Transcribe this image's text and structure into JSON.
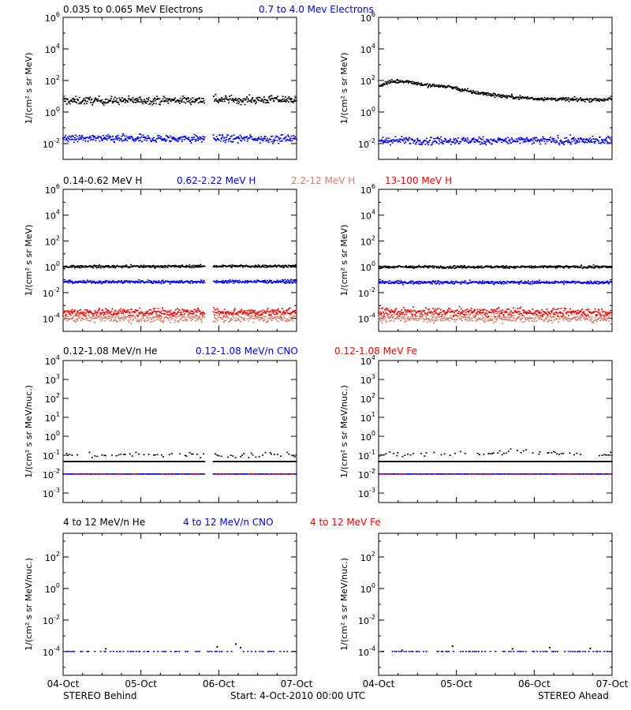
{
  "colors": {
    "black": "#000000",
    "blue": "#0000ff",
    "salmon": "#d4826a",
    "red": "#ff0000"
  },
  "footer": {
    "left": "STEREO Behind",
    "center": "Start:  4-Oct-2010 00:00 UTC",
    "right": "STEREO Ahead"
  },
  "x_tick_labels": [
    "04-Oct",
    "05-Oct",
    "06-Oct",
    "07-Oct"
  ],
  "chart_data": [
    {
      "type": "scatter",
      "row": 0,
      "spacecraft": "STEREO Behind",
      "title_entries": [
        {
          "text": "0.035 to 0.065 MeV Electrons",
          "color": "black"
        },
        {
          "text": "0.7 to 4.0 Mev Electrons",
          "color": "blue"
        }
      ],
      "ylabel": "1/(cm² s sr MeV)",
      "yscale": "log",
      "ylim_exp": [
        -3,
        6
      ],
      "yticks": [
        {
          "base": "10",
          "exp": "-2"
        },
        {
          "base": "10",
          "exp": "0"
        },
        {
          "base": "10",
          "exp": "2"
        },
        {
          "base": "10",
          "exp": "4"
        },
        {
          "base": "10",
          "exp": "6"
        }
      ],
      "xlim_days": [
        0,
        3
      ],
      "gaps": [
        [
          1.82,
          1.93
        ]
      ],
      "series": [
        {
          "color": "black",
          "values": [
            [
              0,
              5.0
            ],
            [
              3,
              6.0
            ]
          ],
          "scatter_dex": 0.12
        },
        {
          "color": "blue",
          "values": [
            [
              0,
              0.02
            ],
            [
              3,
              0.02
            ]
          ],
          "scatter_dex": 0.12
        }
      ]
    },
    {
      "type": "scatter",
      "row": 0,
      "spacecraft": "STEREO Ahead",
      "title_entries": [],
      "ylabel": "1/(cm² s sr MeV)",
      "yscale": "log",
      "ylim_exp": [
        -3,
        6
      ],
      "yticks": [
        {
          "base": "10",
          "exp": "-2"
        },
        {
          "base": "10",
          "exp": "0"
        },
        {
          "base": "10",
          "exp": "2"
        },
        {
          "base": "10",
          "exp": "4"
        },
        {
          "base": "10",
          "exp": "6"
        }
      ],
      "xlim_days": [
        0,
        3
      ],
      "gaps": [],
      "series": [
        {
          "color": "black",
          "values": [
            [
              0,
              45
            ],
            [
              0.15,
              80
            ],
            [
              0.35,
              90
            ],
            [
              0.6,
              50
            ],
            [
              0.9,
              40
            ],
            [
              1.2,
              18
            ],
            [
              1.6,
              10
            ],
            [
              2.0,
              7
            ],
            [
              2.5,
              6
            ],
            [
              3,
              6
            ]
          ],
          "scatter_dex": 0.06
        },
        {
          "color": "blue",
          "values": [
            [
              0,
              0.015
            ],
            [
              3,
              0.015
            ]
          ],
          "scatter_dex": 0.12
        }
      ]
    },
    {
      "type": "scatter",
      "row": 1,
      "spacecraft": "STEREO Behind",
      "title_entries": [
        {
          "text": "0.14-0.62 MeV H",
          "color": "black"
        },
        {
          "text": "0.62-2.22 MeV H",
          "color": "blue"
        },
        {
          "text": "2.2-12 MeV H",
          "color": "salmon"
        },
        {
          "text": "13-100 MeV H",
          "color": "red"
        }
      ],
      "ylabel": "1/(cm² s sr MeV)",
      "yscale": "log",
      "ylim_exp": [
        -5,
        6
      ],
      "yticks": [
        {
          "base": "10",
          "exp": "-4"
        },
        {
          "base": "10",
          "exp": "-2"
        },
        {
          "base": "10",
          "exp": "0"
        },
        {
          "base": "10",
          "exp": "2"
        },
        {
          "base": "10",
          "exp": "4"
        },
        {
          "base": "10",
          "exp": "6"
        }
      ],
      "xlim_days": [
        0,
        3
      ],
      "gaps": [
        [
          1.82,
          1.93
        ]
      ],
      "series": [
        {
          "color": "black",
          "values": [
            [
              0,
              1.0
            ],
            [
              3,
              1.1
            ]
          ],
          "scatter_dex": 0.05
        },
        {
          "color": "blue",
          "values": [
            [
              0,
              0.065
            ],
            [
              3,
              0.07
            ]
          ],
          "scatter_dex": 0.06
        },
        {
          "color": "salmon",
          "values": [
            [
              0,
              0.0001
            ],
            [
              3,
              0.0001
            ]
          ],
          "scatter_dex": 0.15
        },
        {
          "color": "red",
          "values": [
            [
              0,
              0.0003
            ],
            [
              3,
              0.0003
            ]
          ],
          "scatter_dex": 0.15
        }
      ]
    },
    {
      "type": "scatter",
      "row": 1,
      "spacecraft": "STEREO Ahead",
      "title_entries": [],
      "ylabel": "1/(cm² s sr MeV)",
      "yscale": "log",
      "ylim_exp": [
        -5,
        6
      ],
      "yticks": [
        {
          "base": "10",
          "exp": "-4"
        },
        {
          "base": "10",
          "exp": "-2"
        },
        {
          "base": "10",
          "exp": "0"
        },
        {
          "base": "10",
          "exp": "2"
        },
        {
          "base": "10",
          "exp": "4"
        },
        {
          "base": "10",
          "exp": "6"
        }
      ],
      "xlim_days": [
        0,
        3
      ],
      "gaps": [],
      "series": [
        {
          "color": "black",
          "values": [
            [
              0,
              0.95
            ],
            [
              3,
              0.95
            ]
          ],
          "scatter_dex": 0.05
        },
        {
          "color": "blue",
          "values": [
            [
              0,
              0.06
            ],
            [
              3,
              0.06
            ]
          ],
          "scatter_dex": 0.06
        },
        {
          "color": "salmon",
          "values": [
            [
              0,
              0.0001
            ],
            [
              3,
              0.0001
            ]
          ],
          "scatter_dex": 0.15
        },
        {
          "color": "red",
          "values": [
            [
              0,
              0.0003
            ],
            [
              3,
              0.0003
            ]
          ],
          "scatter_dex": 0.15
        }
      ]
    },
    {
      "type": "scatter",
      "row": 2,
      "spacecraft": "STEREO Behind",
      "title_entries": [
        {
          "text": "0.12-1.08 MeV/n He",
          "color": "black"
        },
        {
          "text": "0.12-1.08 MeV/n CNO",
          "color": "blue"
        },
        {
          "text": "0.12-1.08 MeV Fe",
          "color": "red"
        }
      ],
      "ylabel": "1/(cm² s sr MeV/nuc.)",
      "yscale": "log",
      "ylim_exp": [
        -3.5,
        4
      ],
      "yticks": [
        {
          "base": "10",
          "exp": "-3"
        },
        {
          "base": "10",
          "exp": "-2"
        },
        {
          "base": "10",
          "exp": "-1"
        },
        {
          "base": "10",
          "exp": "0"
        },
        {
          "base": "10",
          "exp": "1"
        },
        {
          "base": "10",
          "exp": "2"
        },
        {
          "base": "10",
          "exp": "3"
        },
        {
          "base": "10",
          "exp": "4"
        }
      ],
      "xlim_days": [
        0,
        3
      ],
      "gaps": [
        [
          1.82,
          1.93
        ]
      ],
      "series": [
        {
          "color": "black",
          "values": [
            [
              0,
              0.045
            ],
            [
              3,
              0.045
            ]
          ],
          "scatter_dex": 0.0
        },
        {
          "color": "black",
          "values": [
            [
              0,
              0.1
            ],
            [
              3,
              0.1
            ]
          ],
          "scatter_dex": 0.08,
          "sparse": true
        },
        {
          "color": "blue",
          "values": [
            [
              0,
              0.01
            ],
            [
              3,
              0.01
            ]
          ],
          "scatter_dex": 0.0
        },
        {
          "color": "red",
          "values": [
            [
              0,
              0.01
            ],
            [
              3,
              0.01
            ]
          ],
          "scatter_dex": 0.0,
          "sparse": true
        }
      ]
    },
    {
      "type": "scatter",
      "row": 2,
      "spacecraft": "STEREO Ahead",
      "title_entries": [],
      "ylabel": "1/(cm² s sr MeV/nuc.)",
      "yscale": "log",
      "ylim_exp": [
        -3.5,
        4
      ],
      "yticks": [
        {
          "base": "10",
          "exp": "-3"
        },
        {
          "base": "10",
          "exp": "-2"
        },
        {
          "base": "10",
          "exp": "-1"
        },
        {
          "base": "10",
          "exp": "0"
        },
        {
          "base": "10",
          "exp": "1"
        },
        {
          "base": "10",
          "exp": "2"
        },
        {
          "base": "10",
          "exp": "3"
        },
        {
          "base": "10",
          "exp": "4"
        }
      ],
      "xlim_days": [
        0,
        3
      ],
      "gaps": [],
      "series": [
        {
          "color": "black",
          "values": [
            [
              0,
              0.045
            ],
            [
              3,
              0.045
            ]
          ],
          "scatter_dex": 0.0
        },
        {
          "color": "black",
          "values": [
            [
              0,
              0.1
            ],
            [
              1.0,
              0.12
            ],
            [
              1.6,
              0.14
            ],
            [
              3,
              0.1
            ]
          ],
          "scatter_dex": 0.08,
          "sparse": true
        },
        {
          "color": "blue",
          "values": [
            [
              0,
              0.01
            ],
            [
              3,
              0.01
            ]
          ],
          "scatter_dex": 0.0
        },
        {
          "color": "red",
          "values": [
            [
              0,
              0.01
            ],
            [
              3,
              0.01
            ]
          ],
          "scatter_dex": 0.0,
          "sparse": true
        }
      ]
    },
    {
      "type": "scatter",
      "row": 3,
      "spacecraft": "STEREO Behind",
      "title_entries": [
        {
          "text": "4 to 12 MeV/n He",
          "color": "black"
        },
        {
          "text": "4 to 12 MeV/n CNO",
          "color": "blue"
        },
        {
          "text": "4 to 12 MeV Fe",
          "color": "red"
        }
      ],
      "ylabel": "1/(cm² s sr MeV/nuc.)",
      "yscale": "log",
      "ylim_exp": [
        -5.5,
        3.5
      ],
      "yticks": [
        {
          "base": "10",
          "exp": "-4"
        },
        {
          "base": "10",
          "exp": "-2"
        },
        {
          "base": "10",
          "exp": "0"
        },
        {
          "base": "10",
          "exp": "2"
        }
      ],
      "xlim_days": [
        0,
        3
      ],
      "gaps": [],
      "series": [
        {
          "color": "blue",
          "values": [
            [
              0,
              0.0001
            ],
            [
              3,
              0.0001
            ]
          ],
          "scatter_dex": 0.0,
          "sparse": true
        },
        {
          "color": "black",
          "values": [
            [
              0.55,
              0.00015
            ],
            [
              1.98,
              0.0002
            ],
            [
              2.22,
              0.0003
            ],
            [
              2.28,
              0.00018
            ]
          ],
          "scatter_dex": 0.0,
          "points_only": true
        }
      ]
    },
    {
      "type": "scatter",
      "row": 3,
      "spacecraft": "STEREO Ahead",
      "title_entries": [],
      "ylabel": "1/(cm² s sr MeV/nuc.)",
      "yscale": "log",
      "ylim_exp": [
        -5.5,
        3.5
      ],
      "yticks": [
        {
          "base": "10",
          "exp": "-4"
        },
        {
          "base": "10",
          "exp": "-2"
        },
        {
          "base": "10",
          "exp": "0"
        },
        {
          "base": "10",
          "exp": "2"
        }
      ],
      "xlim_days": [
        0,
        3
      ],
      "gaps": [],
      "series": [
        {
          "color": "blue",
          "values": [
            [
              0,
              0.0001
            ],
            [
              3,
              0.0001
            ]
          ],
          "scatter_dex": 0.0,
          "sparse": true
        },
        {
          "color": "black",
          "values": [
            [
              0.3,
              0.00012
            ],
            [
              0.95,
              0.00022
            ],
            [
              1.72,
              0.00015
            ],
            [
              2.2,
              0.00018
            ],
            [
              2.72,
              0.00016
            ]
          ],
          "scatter_dex": 0.0,
          "points_only": true
        }
      ]
    }
  ]
}
